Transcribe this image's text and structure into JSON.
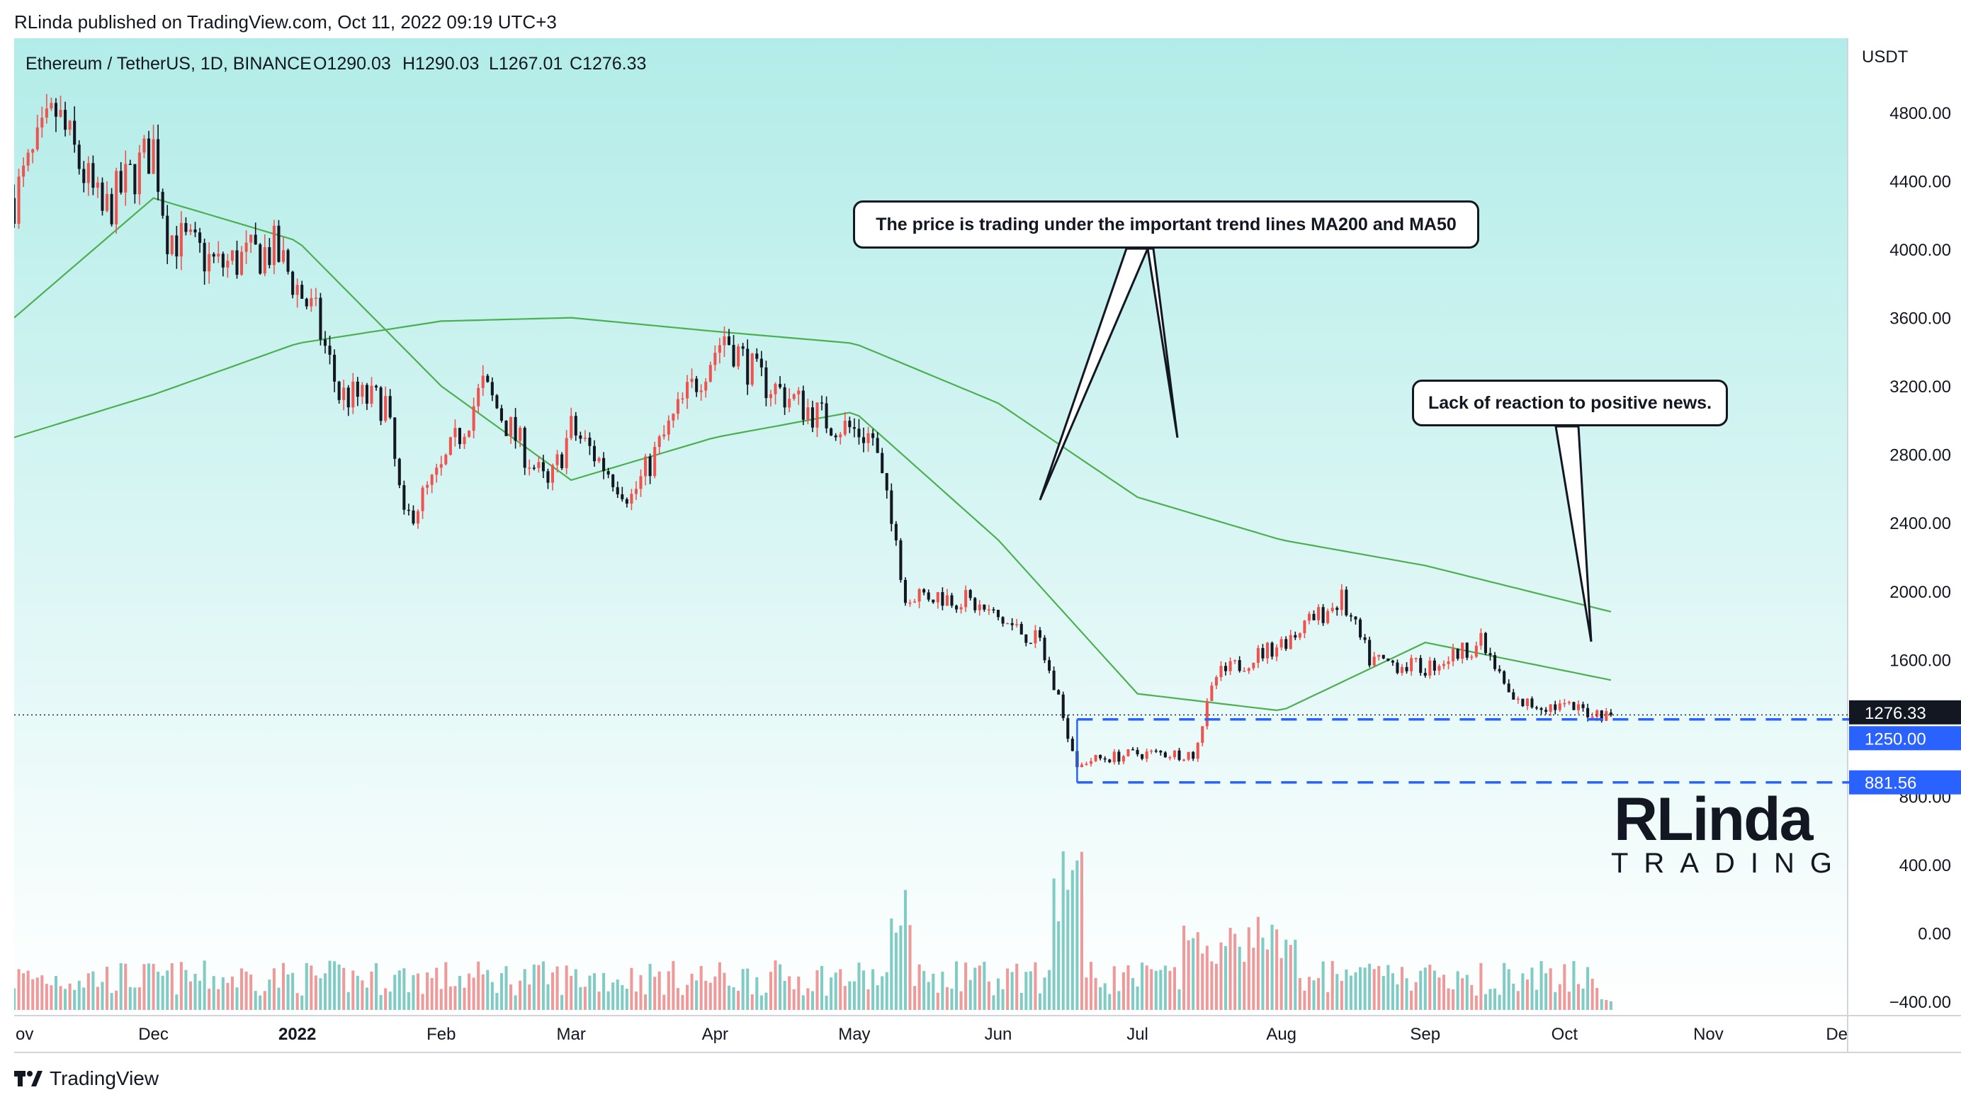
{
  "header": {
    "published": "RLinda published on TradingView.com, Oct 11, 2022 09:19 UTC+3"
  },
  "legend": {
    "symbol": "Ethereum / TetherUS, 1D, BINANCE",
    "open": "O1290.03",
    "high": "H1290.03",
    "low": "L1267.01",
    "close": "C1276.33"
  },
  "axis": {
    "currency": "USDT",
    "price_ticks": [
      "4800.00",
      "4400.00",
      "4000.00",
      "3600.00",
      "3200.00",
      "2800.00",
      "2400.00",
      "2000.00",
      "1600.00",
      "800.00",
      "400.00",
      "0.00",
      "−400.00"
    ],
    "time_ticks": [
      "ov",
      "Dec",
      "2022",
      "Feb",
      "Mar",
      "Apr",
      "May",
      "Jun",
      "Jul",
      "Aug",
      "Sep",
      "Oct",
      "Nov",
      "De"
    ]
  },
  "price_labels": {
    "last": "1276.33",
    "support_1": "1250.00",
    "support_2": "881.56"
  },
  "annotations": {
    "callout_ma": "The price is trading under the important trend lines MA200 and MA50",
    "callout_news": "Lack of reaction to positive news."
  },
  "watermark": {
    "logo_top": "RLinda",
    "logo_bottom": "TRADING"
  },
  "footer": {
    "brand": "TradingView"
  },
  "colors": {
    "up": "#ef5350",
    "down": "#131722",
    "ma": "#4caf50",
    "support": "#2962ff",
    "vol_up": "#ef9a9a",
    "vol_down": "#80cbc4"
  },
  "chart_data": {
    "type": "candlestick",
    "title": "Ethereum / TetherUS, 1D, BINANCE",
    "ylabel": "USDT",
    "ylim": [
      -600,
      4950
    ],
    "ohlc_last": {
      "open": 1290.03,
      "high": 1290.03,
      "low": 1267.01,
      "close": 1276.33
    },
    "price_path": {
      "description_points": [
        [
          "2021-11-01",
          4300
        ],
        [
          "2021-11-10",
          4800
        ],
        [
          "2021-11-20",
          4200
        ],
        [
          "2021-12-01",
          4600
        ],
        [
          "2021-12-04",
          4100
        ],
        [
          "2021-12-15",
          3900
        ],
        [
          "2021-12-27",
          4000
        ],
        [
          "2022-01-05",
          3600
        ],
        [
          "2022-01-10",
          3150
        ],
        [
          "2022-01-20",
          3100
        ],
        [
          "2022-01-24",
          2400
        ],
        [
          "2022-02-01",
          2700
        ],
        [
          "2022-02-10",
          3200
        ],
        [
          "2022-02-24",
          2600
        ],
        [
          "2022-03-01",
          2950
        ],
        [
          "2022-03-14",
          2550
        ],
        [
          "2022-03-25",
          3100
        ],
        [
          "2022-04-03",
          3500
        ],
        [
          "2022-04-10",
          3250
        ],
        [
          "2022-04-25",
          3000
        ],
        [
          "2022-05-05",
          2900
        ],
        [
          "2022-05-12",
          2000
        ],
        [
          "2022-05-25",
          1950
        ],
        [
          "2022-06-10",
          1700
        ],
        [
          "2022-06-18",
          1000
        ],
        [
          "2022-07-01",
          1050
        ],
        [
          "2022-07-13",
          1050
        ],
        [
          "2022-07-18",
          1500
        ],
        [
          "2022-08-01",
          1700
        ],
        [
          "2022-08-14",
          1950
        ],
        [
          "2022-08-20",
          1600
        ],
        [
          "2022-09-01",
          1550
        ],
        [
          "2022-09-13",
          1700
        ],
        [
          "2022-09-20",
          1350
        ],
        [
          "2022-10-01",
          1320
        ],
        [
          "2022-10-11",
          1276.33
        ]
      ]
    },
    "ma200": [
      [
        "2021-11-01",
        2900
      ],
      [
        "2021-12-01",
        3150
      ],
      [
        "2022-01-01",
        3450
      ],
      [
        "2022-02-01",
        3580
      ],
      [
        "2022-03-01",
        3600
      ],
      [
        "2022-04-01",
        3520
      ],
      [
        "2022-05-01",
        3450
      ],
      [
        "2022-06-01",
        3100
      ],
      [
        "2022-07-01",
        2550
      ],
      [
        "2022-08-01",
        2300
      ],
      [
        "2022-09-01",
        2150
      ],
      [
        "2022-10-11",
        1880
      ]
    ],
    "ma50": [
      [
        "2021-11-01",
        3600
      ],
      [
        "2021-12-01",
        4300
      ],
      [
        "2022-01-01",
        4050
      ],
      [
        "2022-02-01",
        3200
      ],
      [
        "2022-03-01",
        2650
      ],
      [
        "2022-04-01",
        2900
      ],
      [
        "2022-05-01",
        3050
      ],
      [
        "2022-06-01",
        2300
      ],
      [
        "2022-07-01",
        1400
      ],
      [
        "2022-08-01",
        1300
      ],
      [
        "2022-09-01",
        1700
      ],
      [
        "2022-10-11",
        1480
      ]
    ],
    "support_levels": [
      1250.0,
      881.56
    ],
    "last_price": 1276.33
  }
}
